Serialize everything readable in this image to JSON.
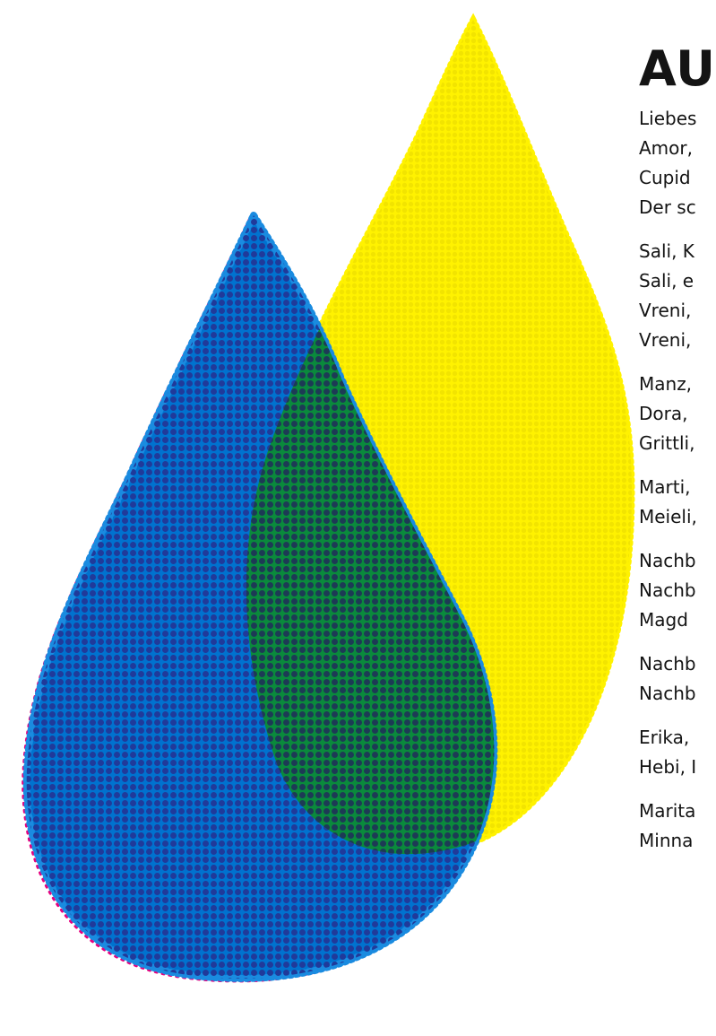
{
  "title": "AU",
  "cast_groups": [
    [
      "Liebes",
      "Amor,",
      "Cupid",
      "Der sc"
    ],
    [
      "Sali, K",
      "Sali, e",
      "Vreni,",
      "Vreni,"
    ],
    [
      "Manz,",
      "Dora,",
      "Grittli,"
    ],
    [
      "Marti,",
      "Meieli,"
    ],
    [
      "Nachb",
      "Nachb",
      "Magd"
    ],
    [
      "Nachb",
      "Nachb"
    ],
    [
      "Erika,",
      "Hebi, I"
    ],
    [
      "Marita",
      "Minna"
    ]
  ],
  "artwork": {
    "yellow_drop_color": "#fff200",
    "blue_drop_color": "#0070c8",
    "overlap_color": "#0d8a3a",
    "halftone_dot_color": "#203a9a",
    "misregistration_color": "#e6007e"
  }
}
